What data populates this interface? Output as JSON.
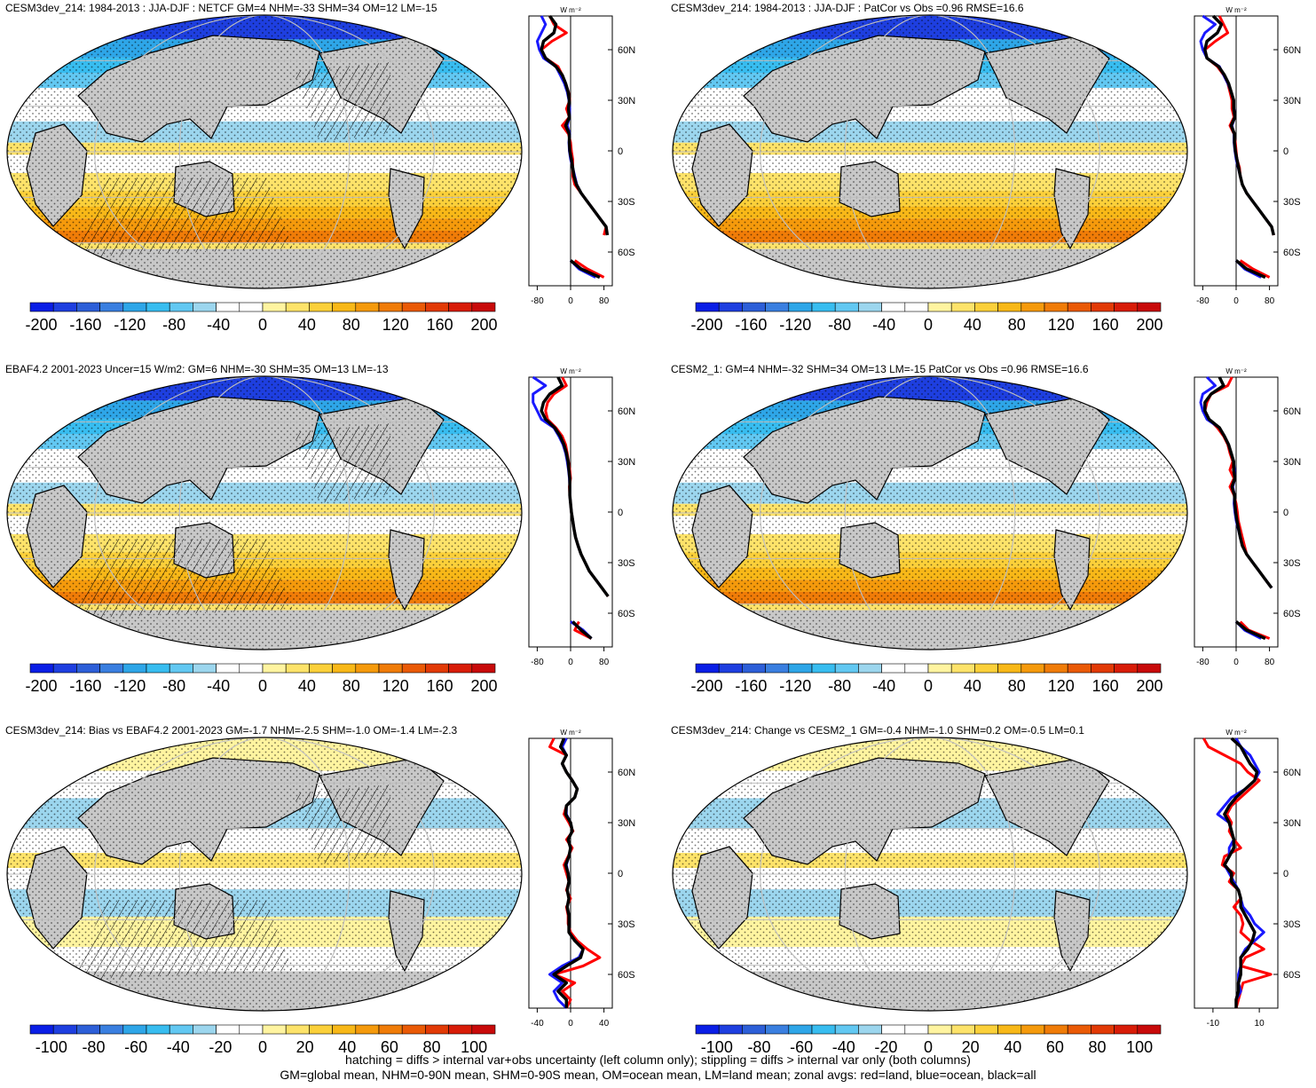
{
  "panels": [
    {
      "title": "CESM3dev_214: 1984-2013 : JJA-DJF : NETCF GM=4 NHM=-33 SHM=34 OM=12 LM=-15",
      "cbar_ticks": [
        "-200",
        "-160",
        "-120",
        "-80",
        "-40",
        "0",
        "40",
        "80",
        "120",
        "160",
        "200"
      ],
      "zonal_x_ticks": [
        "-80",
        "0",
        "80"
      ],
      "zonal_x_range": [
        -100,
        100
      ],
      "zonal_unit": "W m⁻²",
      "hatch": true
    },
    {
      "title": "CESM3dev_214: 1984-2013 : JJA-DJF : PatCor vs Obs =0.96 RMSE=16.6",
      "cbar_ticks": [
        "-200",
        "-160",
        "-120",
        "-80",
        "-40",
        "0",
        "40",
        "80",
        "120",
        "160",
        "200"
      ],
      "zonal_x_ticks": [
        "-80",
        "0",
        "80"
      ],
      "zonal_x_range": [
        -100,
        100
      ],
      "zonal_unit": "W m⁻²",
      "hatch": false
    },
    {
      "title": "EBAF4.2 2001-2023 Uncer=15 W/m2: GM=6 NHM=-30 SHM=35 OM=13 LM=-13",
      "cbar_ticks": [
        "-200",
        "-160",
        "-120",
        "-80",
        "-40",
        "0",
        "40",
        "80",
        "120",
        "160",
        "200"
      ],
      "zonal_x_ticks": [
        "-80",
        "0",
        "80"
      ],
      "zonal_x_range": [
        -100,
        100
      ],
      "zonal_unit": "W m⁻²",
      "hatch": true
    },
    {
      "title": "CESM2_1: GM=4 NHM=-32 SHM=34 OM=13 LM=-15 PatCor vs Obs =0.96 RMSE=16.6",
      "cbar_ticks": [
        "-200",
        "-160",
        "-120",
        "-80",
        "-40",
        "0",
        "40",
        "80",
        "120",
        "160",
        "200"
      ],
      "zonal_x_ticks": [
        "-80",
        "0",
        "80"
      ],
      "zonal_x_range": [
        -100,
        100
      ],
      "zonal_unit": "W m⁻²",
      "hatch": false
    },
    {
      "title": "CESM3dev_214: Bias vs EBAF4.2 2001-2023 GM=-1.7 NHM=-2.5 SHM=-1.0 OM=-1.4 LM=-2.3",
      "cbar_ticks": [
        "-100",
        "-80",
        "-60",
        "-40",
        "-20",
        "0",
        "20",
        "40",
        "60",
        "80",
        "100"
      ],
      "zonal_x_ticks": [
        "-40",
        "0",
        "40"
      ],
      "zonal_x_range": [
        -50,
        50
      ],
      "zonal_unit": "W m⁻²",
      "hatch": true
    },
    {
      "title": "CESM3dev_214: Change vs CESM2_1 GM=-0.4 NHM=-1.0 SHM=0.2 OM=-0.5 LM=0.1",
      "cbar_ticks": [
        "-100",
        "-80",
        "-60",
        "-40",
        "-20",
        "0",
        "20",
        "40",
        "60",
        "80",
        "100"
      ],
      "zonal_x_ticks": [
        "-10",
        "10"
      ],
      "zonal_x_range": [
        -18,
        18
      ],
      "zonal_unit": "W m⁻²",
      "hatch": false
    }
  ],
  "lat_ticks": [
    "60N",
    "30N",
    "0",
    "30S",
    "60S"
  ],
  "colors": {
    "scale": [
      "#0a1ee6",
      "#1e3fe0",
      "#2d5fd8",
      "#3a7fe0",
      "#2ea6e8",
      "#38bdf0",
      "#62c8f2",
      "#9cd6ee",
      "#ffffff",
      "#ffffff",
      "#fff4a0",
      "#fde36a",
      "#fbd03a",
      "#f8b818",
      "#f59a0c",
      "#f07c08",
      "#ea5a06",
      "#e23a06",
      "#d81c08",
      "#c80a0a"
    ],
    "land": "#c8c8c8",
    "red": "#ff0000",
    "blue": "#1a1aff",
    "black": "#000000"
  },
  "chart_data": [
    {
      "type": "heatmap",
      "title": "CESM3dev_214: 1984-2013 : JJA-DJF : NETCF GM=4 NHM=-33 SHM=34 OM=12 LM=-15",
      "colorbar_range": [
        -210,
        210
      ],
      "zonal_lat": [
        80,
        75,
        70,
        65,
        60,
        55,
        50,
        45,
        40,
        35,
        30,
        25,
        20,
        15,
        10,
        5,
        0,
        -5,
        -10,
        -15,
        -20,
        -25,
        -30,
        -35,
        -40,
        -45,
        -50,
        -55,
        -60,
        -65,
        -70,
        -75,
        -80
      ],
      "series": [
        {
          "name": "red",
          "values": [
            -50,
            -40,
            -10,
            -45,
            -70,
            -60,
            -30,
            -20,
            -12,
            -5,
            -2,
            -10,
            -3,
            -20,
            -5,
            0,
            2,
            5,
            5,
            5,
            10,
            25,
            40,
            55,
            70,
            85,
            80,
            null,
            null,
            10,
            40,
            80,
            null
          ]
        },
        {
          "name": "blue",
          "values": [
            -70,
            -60,
            -70,
            -80,
            -75,
            -65,
            -35,
            -25,
            -15,
            -8,
            -4,
            -2,
            -3,
            -8,
            -2,
            -4,
            -3,
            0,
            5,
            10,
            15,
            25,
            40,
            55,
            70,
            85,
            null,
            null,
            null,
            0,
            20,
            60,
            null
          ]
        },
        {
          "name": "black",
          "values": [
            -50,
            -35,
            -40,
            -65,
            -70,
            -60,
            -35,
            -20,
            -12,
            -6,
            -3,
            -5,
            -3,
            -12,
            -3,
            -3,
            -2,
            2,
            5,
            8,
            14,
            25,
            40,
            55,
            70,
            85,
            88,
            null,
            null,
            0,
            25,
            70,
            null
          ]
        }
      ]
    },
    {
      "type": "heatmap",
      "title": "CESM3dev_214: 1984-2013 : JJA-DJF : PatCor vs Obs =0.96 RMSE=16.6",
      "colorbar_range": [
        -210,
        210
      ],
      "zonal_lat": [
        80,
        75,
        70,
        65,
        60,
        55,
        50,
        45,
        40,
        35,
        30,
        25,
        20,
        15,
        10,
        5,
        0,
        -5,
        -10,
        -15,
        -20,
        -25,
        -30,
        -35,
        -40,
        -45,
        -50,
        -55,
        -60,
        -65,
        -70,
        -75,
        -80
      ],
      "series": [
        {
          "name": "red",
          "values": [
            -40,
            -30,
            -20,
            -50,
            -75,
            -70,
            -45,
            -30,
            -20,
            -15,
            -10,
            -10,
            -5,
            -15,
            -5,
            -2,
            0,
            2,
            8,
            10,
            15,
            25,
            40,
            55,
            70,
            85,
            90,
            null,
            null,
            10,
            40,
            80,
            null
          ]
        },
        {
          "name": "blue",
          "values": [
            -80,
            -50,
            -75,
            -85,
            -80,
            -70,
            -40,
            -30,
            -20,
            -12,
            -6,
            -5,
            -3,
            -10,
            -5,
            -5,
            -3,
            0,
            5,
            10,
            15,
            25,
            40,
            55,
            70,
            85,
            null,
            null,
            null,
            0,
            20,
            60,
            null
          ]
        },
        {
          "name": "black",
          "values": [
            -55,
            -35,
            -45,
            -70,
            -75,
            -70,
            -42,
            -28,
            -18,
            -12,
            -6,
            -6,
            -3,
            -12,
            -4,
            -4,
            -2,
            2,
            6,
            10,
            15,
            25,
            40,
            55,
            70,
            85,
            90,
            null,
            null,
            0,
            25,
            70,
            null
          ]
        }
      ]
    },
    {
      "type": "heatmap",
      "title": "EBAF4.2 2001-2023 Uncer=15 W/m2: GM=6 NHM=-30 SHM=35 OM=13 LM=-13",
      "colorbar_range": [
        -210,
        210
      ],
      "zonal_lat": [
        80,
        75,
        70,
        65,
        60,
        55,
        50,
        45,
        40,
        35,
        30,
        25,
        20,
        15,
        10,
        5,
        0,
        -5,
        -10,
        -15,
        -20,
        -25,
        -30,
        -35,
        -40,
        -45,
        -50,
        -55,
        -60,
        -65,
        -70,
        -75,
        -80
      ],
      "series": [
        {
          "name": "red",
          "values": [
            -20,
            -10,
            -40,
            -55,
            -60,
            -55,
            -35,
            -20,
            -12,
            -8,
            -5,
            -2,
            0,
            -3,
            -2,
            0,
            2,
            5,
            8,
            12,
            18,
            25,
            35,
            45,
            60,
            75,
            90,
            null,
            null,
            20,
            10,
            50,
            null
          ]
        },
        {
          "name": "blue",
          "values": [
            -90,
            -60,
            -90,
            -90,
            -80,
            -70,
            -40,
            -28,
            -18,
            -12,
            -8,
            -5,
            -3,
            -2,
            -2,
            0,
            2,
            5,
            8,
            12,
            18,
            25,
            35,
            45,
            60,
            75,
            null,
            null,
            null,
            0,
            30,
            50,
            null
          ]
        },
        {
          "name": "black",
          "values": [
            -30,
            -20,
            -50,
            -65,
            -70,
            -60,
            -38,
            -25,
            -16,
            -10,
            -6,
            -4,
            -2,
            -2,
            -2,
            0,
            2,
            5,
            8,
            12,
            18,
            25,
            35,
            45,
            60,
            75,
            90,
            null,
            null,
            5,
            25,
            50,
            null
          ]
        }
      ]
    },
    {
      "type": "heatmap",
      "title": "CESM2_1: GM=4 NHM=-32 SHM=34 OM=13 LM=-15 PatCor vs Obs =0.96 RMSE=16.6",
      "colorbar_range": [
        -210,
        210
      ],
      "zonal_lat": [
        80,
        75,
        70,
        65,
        60,
        55,
        50,
        45,
        40,
        35,
        30,
        25,
        20,
        15,
        10,
        5,
        0,
        -5,
        -10,
        -15,
        -20,
        -25,
        -30,
        -35,
        -40,
        -45,
        -50,
        -55,
        -60,
        -65,
        -70,
        -75,
        -80
      ],
      "series": [
        {
          "name": "red",
          "values": [
            -10,
            -20,
            -60,
            -70,
            -75,
            -65,
            -45,
            -30,
            -20,
            -15,
            -8,
            -15,
            -5,
            -15,
            -5,
            0,
            3,
            5,
            10,
            15,
            20,
            25,
            40,
            55,
            70,
            85,
            null,
            null,
            null,
            10,
            30,
            80,
            null
          ]
        },
        {
          "name": "blue",
          "values": [
            -70,
            -50,
            -80,
            -85,
            -80,
            -70,
            -40,
            -28,
            -18,
            -12,
            -6,
            -4,
            -3,
            -8,
            -4,
            -5,
            -3,
            0,
            5,
            10,
            15,
            25,
            40,
            55,
            70,
            85,
            null,
            null,
            null,
            0,
            20,
            60,
            null
          ]
        },
        {
          "name": "black",
          "values": [
            -40,
            -30,
            -60,
            -75,
            -75,
            -65,
            -40,
            -28,
            -18,
            -12,
            -6,
            -6,
            -3,
            -10,
            -4,
            -3,
            -1,
            2,
            6,
            10,
            15,
            25,
            40,
            55,
            70,
            85,
            null,
            null,
            null,
            0,
            25,
            70,
            null
          ]
        }
      ]
    },
    {
      "type": "heatmap",
      "title": "CESM3dev_214: Bias vs EBAF4.2 2001-2023 GM=-1.7 NHM=-2.5 SHM=-1.0 OM=-1.4 LM=-2.3",
      "colorbar_range": [
        -110,
        110
      ],
      "zonal_lat": [
        80,
        75,
        70,
        65,
        60,
        55,
        50,
        45,
        40,
        35,
        30,
        25,
        20,
        15,
        10,
        5,
        0,
        -5,
        -10,
        -15,
        -20,
        -25,
        -30,
        -35,
        -40,
        -45,
        -50,
        -55,
        -60,
        -65,
        -70,
        -75,
        -80
      ],
      "series": [
        {
          "name": "red",
          "values": [
            -20,
            -25,
            -5,
            -10,
            -5,
            2,
            8,
            5,
            -5,
            -8,
            -2,
            3,
            -5,
            2,
            -3,
            -8,
            -5,
            -2,
            -5,
            0,
            -5,
            -3,
            -3,
            0,
            8,
            20,
            35,
            15,
            -20,
            5,
            -10,
            0,
            -5
          ]
        },
        {
          "name": "blue",
          "values": [
            -5,
            -10,
            -5,
            -10,
            -5,
            2,
            8,
            5,
            -5,
            -5,
            0,
            2,
            -3,
            0,
            -2,
            -5,
            -3,
            -2,
            -4,
            -2,
            -4,
            -2,
            -2,
            -2,
            5,
            15,
            10,
            -10,
            -25,
            -10,
            -20,
            -15,
            -5
          ]
        },
        {
          "name": "black",
          "values": [
            -8,
            -12,
            -5,
            -10,
            -5,
            2,
            8,
            5,
            -5,
            -6,
            0,
            2,
            -3,
            0,
            -2,
            -6,
            -3,
            -2,
            -4,
            -2,
            -4,
            -2,
            -2,
            -2,
            5,
            15,
            12,
            -5,
            -20,
            -5,
            -15,
            -5,
            -5
          ]
        }
      ]
    },
    {
      "type": "heatmap",
      "title": "CESM3dev_214: Change vs CESM2_1 GM=-0.4 NHM=-1.0 SHM=0.2 OM=-0.5 LM=0.1",
      "colorbar_range": [
        -110,
        110
      ],
      "zonal_lat": [
        80,
        75,
        70,
        65,
        60,
        55,
        50,
        45,
        40,
        35,
        30,
        25,
        20,
        15,
        10,
        5,
        0,
        -5,
        -10,
        -15,
        -20,
        -25,
        -30,
        -35,
        -40,
        -45,
        -50,
        -55,
        -60,
        -65,
        -70,
        -75,
        -80
      ],
      "series": [
        {
          "name": "red",
          "values": [
            -14,
            -12,
            -5,
            2,
            5,
            10,
            6,
            2,
            -2,
            -4,
            -2,
            -3,
            -1,
            2,
            -5,
            -6,
            -1,
            -3,
            1,
            2,
            -1,
            2,
            3,
            2,
            6,
            12,
            4,
            2,
            15,
            3,
            2,
            1,
            0
          ]
        },
        {
          "name": "blue",
          "values": [
            0,
            2,
            6,
            8,
            10,
            8,
            4,
            -2,
            -5,
            -8,
            -3,
            -2,
            -1,
            -3,
            -3,
            -5,
            -3,
            -1,
            1,
            2,
            3,
            6,
            8,
            12,
            8,
            4,
            2,
            2,
            1,
            1,
            2,
            0,
            0
          ]
        },
        {
          "name": "black",
          "values": [
            -2,
            2,
            4,
            6,
            9,
            8,
            4,
            0,
            -3,
            -5,
            -3,
            -2,
            -1,
            -1,
            -3,
            -5,
            -2,
            -2,
            1,
            2,
            2,
            4,
            6,
            8,
            7,
            5,
            2,
            2,
            2,
            1,
            1,
            0,
            0
          ]
        }
      ]
    }
  ],
  "footer": {
    "line1": "hatching = diffs > internal var+obs uncertainty (left column only); stippling = diffs > internal var only (both columns)",
    "line2": "GM=global mean, NHM=0-90N mean, SHM=0-90S mean, OM=ocean mean, LM=land mean; zonal avgs: red=land, blue=ocean, black=all"
  }
}
